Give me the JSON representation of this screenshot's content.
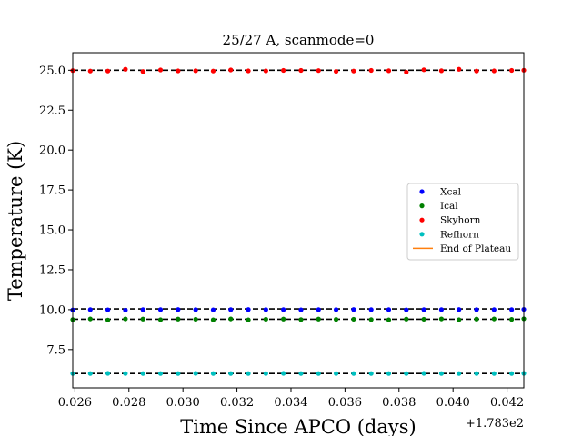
{
  "chart_data": {
    "type": "scatter",
    "title": "25/27 A, scanmode=0",
    "xlabel": "Time Since APCO (days)",
    "ylabel": "Temperature (K)",
    "x_offset_label": "+1.783e2",
    "xlim": [
      0.02592,
      0.04262
    ],
    "ylim": [
      5.1,
      26.1
    ],
    "xticks": [
      0.026,
      0.028,
      0.03,
      0.032,
      0.034,
      0.036,
      0.038,
      0.04,
      0.042
    ],
    "xtick_labels": [
      "0.026",
      "0.028",
      "0.030",
      "0.032",
      "0.034",
      "0.036",
      "0.038",
      "0.040",
      "0.042"
    ],
    "yticks": [
      7.5,
      10.0,
      12.5,
      15.0,
      17.5,
      20.0,
      22.5,
      25.0
    ],
    "ytick_labels": [
      "7.5",
      "10.0",
      "12.5",
      "15.0",
      "17.5",
      "20.0",
      "22.5",
      "25.0"
    ],
    "x": [
      0.02592,
      0.02657,
      0.02722,
      0.02787,
      0.02852,
      0.02917,
      0.02982,
      0.03047,
      0.03112,
      0.03177,
      0.03242,
      0.03307,
      0.03372,
      0.03437,
      0.03502,
      0.03567,
      0.03632,
      0.03697,
      0.03762,
      0.03827,
      0.03892,
      0.03957,
      0.04022,
      0.04087,
      0.04152,
      0.04217,
      0.04262
    ],
    "series": [
      {
        "name": "Xcal",
        "color": "#0000ff",
        "marker": "dot",
        "values": [
          9.98,
          10.0,
          9.99,
          9.97,
          10.0,
          10.0,
          10.01,
          10.0,
          9.99,
          10.0,
          10.01,
          10.0,
          10.0,
          9.99,
          10.0,
          10.0,
          10.01,
          10.0,
          10.0,
          9.99,
          10.0,
          10.0,
          10.01,
          10.0,
          10.0,
          10.0,
          10.02
        ]
      },
      {
        "name": "Ical",
        "color": "#008000",
        "marker": "dot",
        "values": [
          9.38,
          9.42,
          9.35,
          9.42,
          9.41,
          9.37,
          9.41,
          9.4,
          9.36,
          9.42,
          9.36,
          9.4,
          9.41,
          9.38,
          9.41,
          9.39,
          9.4,
          9.38,
          9.36,
          9.41,
          9.4,
          9.42,
          9.37,
          9.41,
          9.42,
          9.39,
          9.43
        ]
      },
      {
        "name": "Skyhorn",
        "color": "#ff0000",
        "marker": "dot",
        "values": [
          24.98,
          24.95,
          24.95,
          25.06,
          24.92,
          25.02,
          24.96,
          24.97,
          24.95,
          25.02,
          24.96,
          24.96,
          24.99,
          24.99,
          24.98,
          24.93,
          24.95,
          24.99,
          24.97,
          24.88,
          25.03,
          24.97,
          25.06,
          24.95,
          24.96,
          24.99,
          25.0
        ]
      },
      {
        "name": "Refhorn",
        "color": "#00bfbf",
        "marker": "dot",
        "values": [
          6.0,
          6.0,
          6.01,
          6.0,
          6.0,
          6.0,
          6.0,
          6.01,
          6.0,
          6.0,
          6.0,
          6.0,
          6.01,
          6.0,
          6.0,
          6.0,
          6.0,
          6.0,
          6.0,
          6.0,
          6.01,
          6.0,
          6.0,
          6.0,
          6.0,
          6.0,
          6.01
        ]
      }
    ],
    "reference_lines": [
      25.0,
      10.05,
      9.4,
      6.0
    ],
    "reference_line_color": "#000000",
    "legend": {
      "placement": "center-right",
      "entries": [
        {
          "name": "Xcal",
          "color": "#0000ff",
          "kind": "dot"
        },
        {
          "name": "Ical",
          "color": "#008000",
          "kind": "dot"
        },
        {
          "name": "Skyhorn",
          "color": "#ff0000",
          "kind": "dot"
        },
        {
          "name": "Refhorn",
          "color": "#00bfbf",
          "kind": "dot"
        },
        {
          "name": "End of Plateau",
          "color": "#ff7f0e",
          "kind": "line"
        }
      ]
    },
    "grid": false
  }
}
